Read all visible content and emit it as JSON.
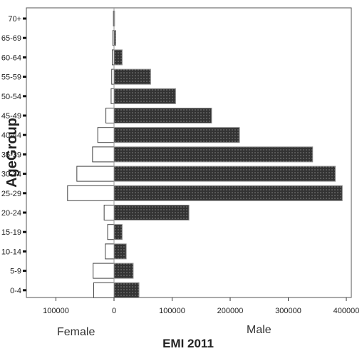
{
  "chart_data": {
    "type": "bar",
    "orientation": "horizontal",
    "title": "",
    "xlabel": "EMI 2011",
    "ylabel": "AgeGroup",
    "left_side_label": "Female",
    "right_side_label": "Male",
    "categories": [
      "70+",
      "65-69",
      "60-64",
      "55-59",
      "50-54",
      "45-49",
      "40-44",
      "35-39",
      "30-34",
      "25-29",
      "20-24",
      "15-19",
      "10-14",
      "5-9",
      "0-4"
    ],
    "series": [
      {
        "name": "Female",
        "values": [
          1000,
          2000,
          3000,
          4000,
          5000,
          14000,
          28000,
          37000,
          64000,
          80000,
          17000,
          11000,
          15000,
          36000,
          35000
        ]
      },
      {
        "name": "Male",
        "values": [
          1000,
          3000,
          14000,
          63000,
          106000,
          168000,
          216000,
          342000,
          381000,
          393000,
          129000,
          14000,
          21000,
          33000,
          43000
        ]
      }
    ],
    "x_ticks": [
      {
        "value": -100000,
        "label": "100000"
      },
      {
        "value": 0,
        "label": "0"
      },
      {
        "value": 100000,
        "label": "100000"
      },
      {
        "value": 200000,
        "label": "200000"
      },
      {
        "value": 300000,
        "label": "300000"
      },
      {
        "value": 400000,
        "label": "400000"
      }
    ],
    "xlim": [
      -110000,
      410000
    ],
    "grid": false,
    "colors": {
      "female_fill": "#ffffff",
      "female_stroke": "#444444",
      "male_fill": "#333333",
      "male_dot": "#8c8c8c"
    }
  }
}
